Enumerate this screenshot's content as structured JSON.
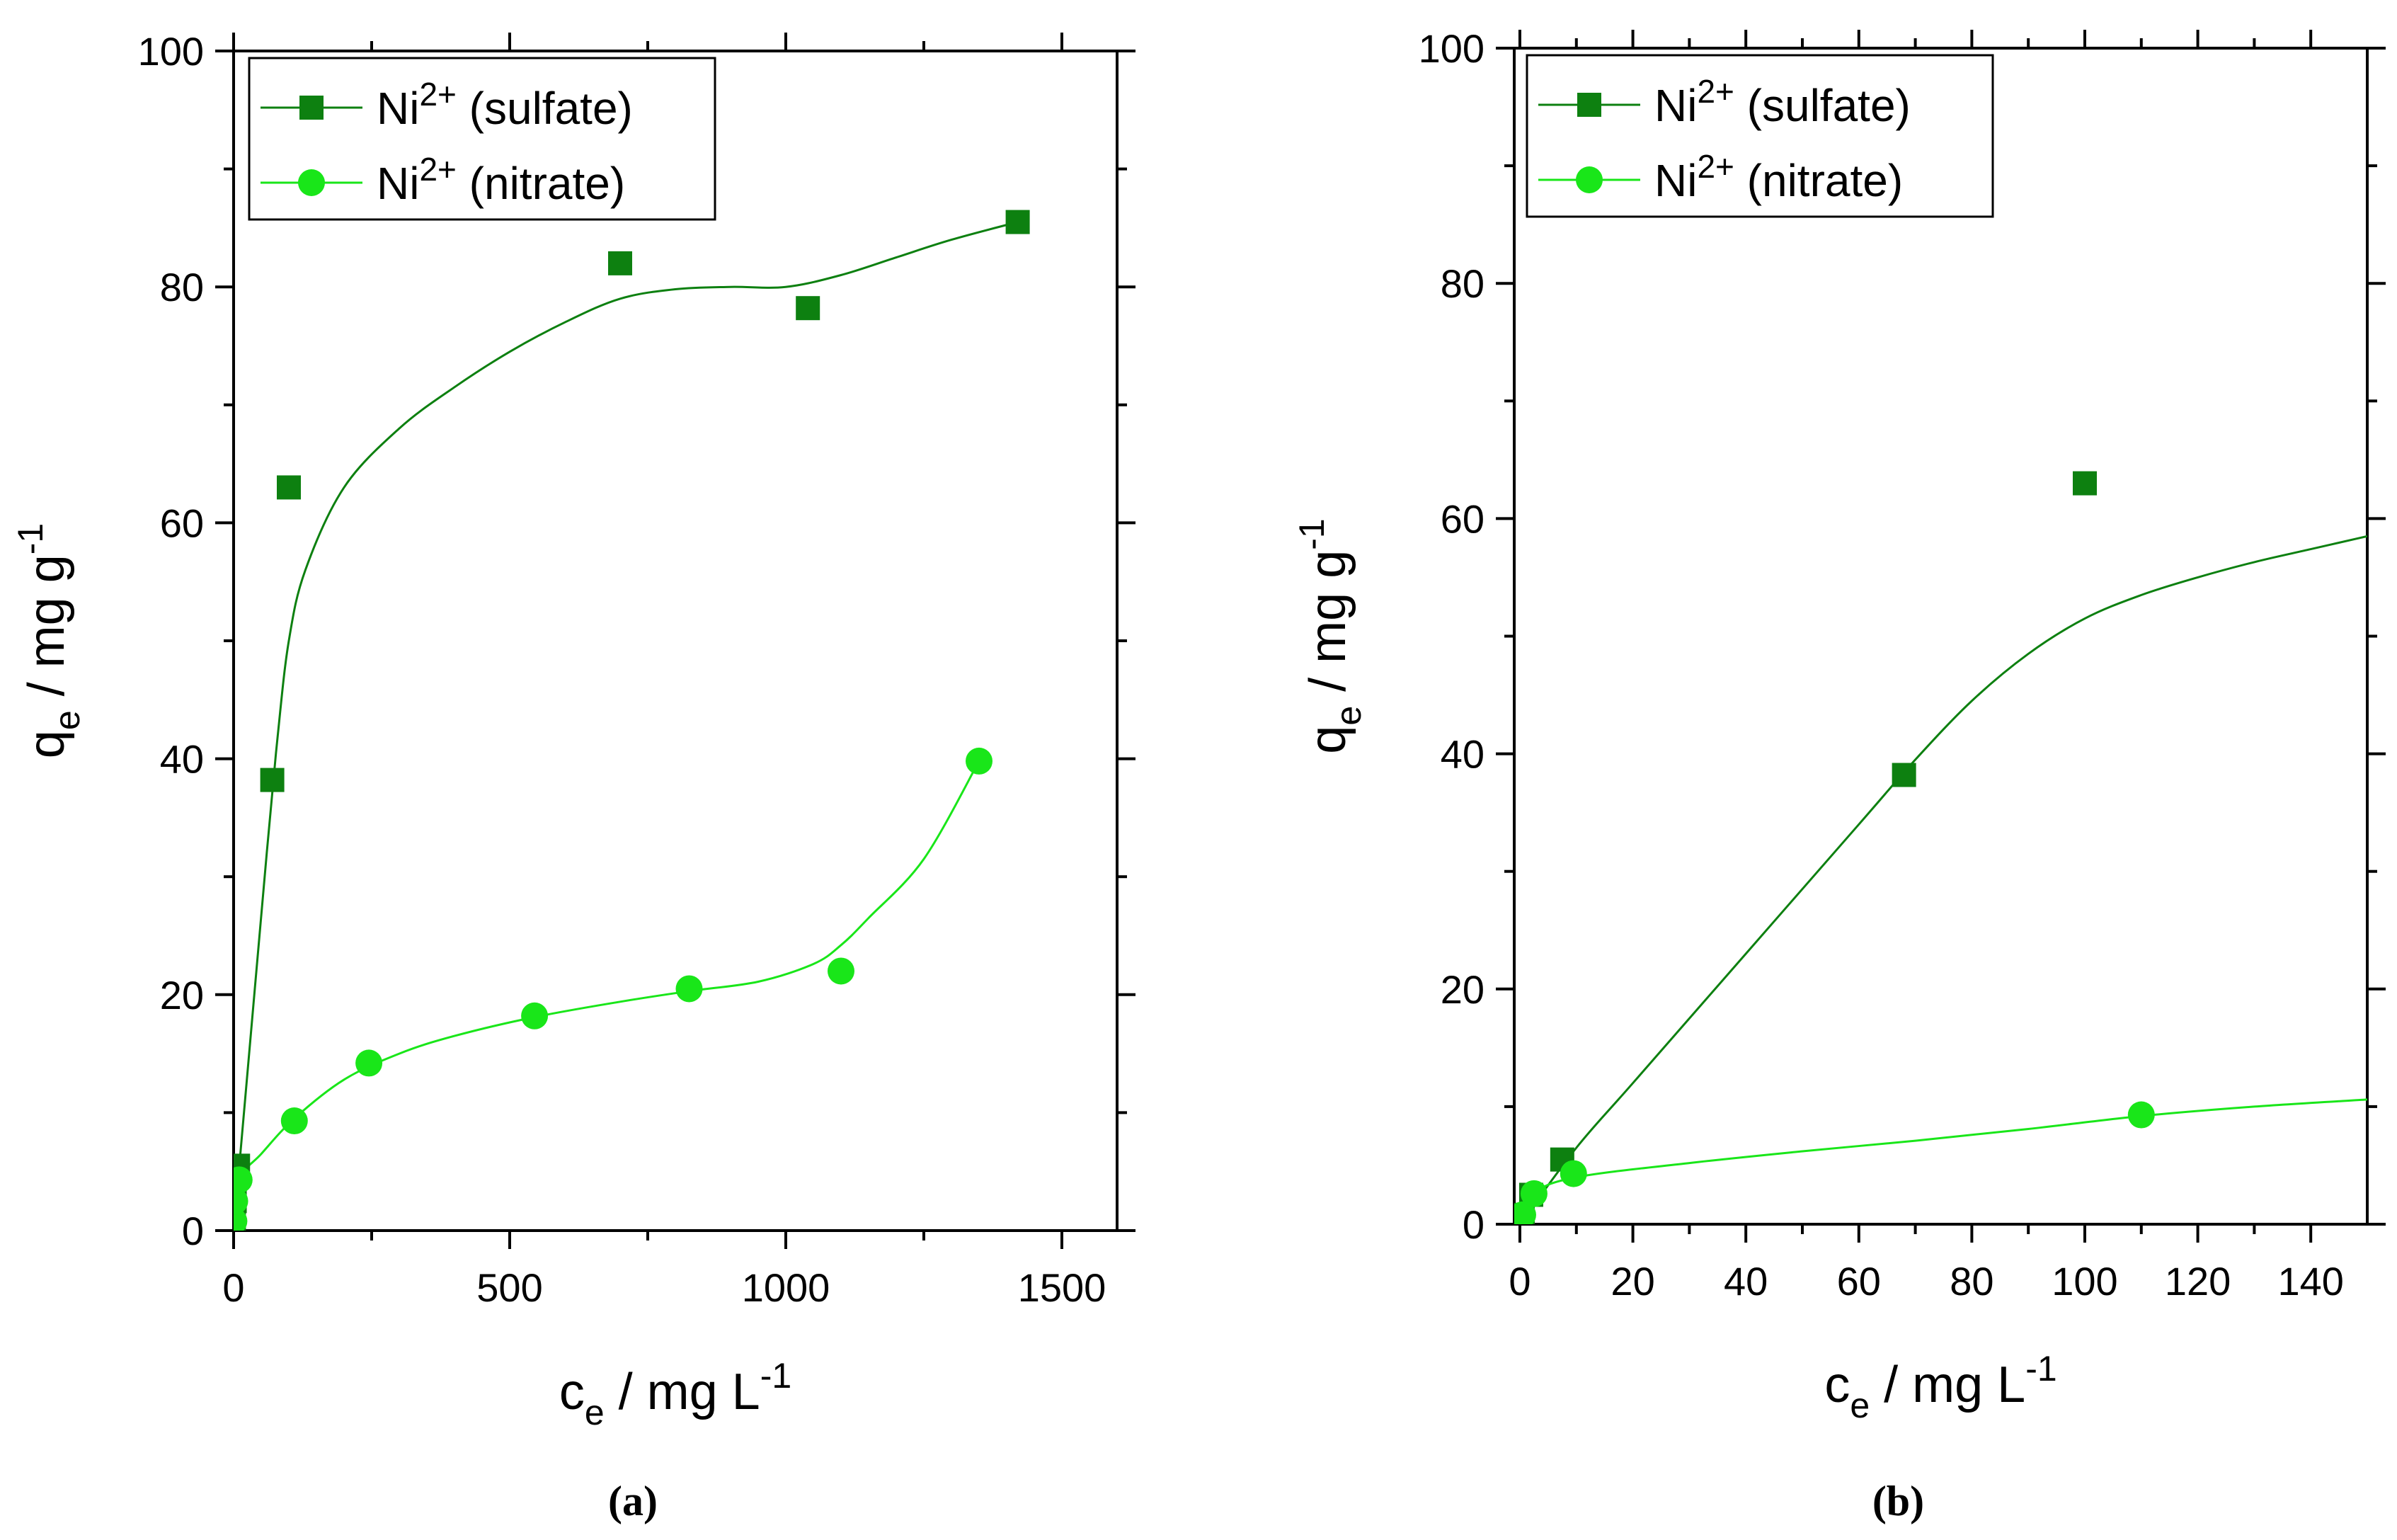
{
  "colors": {
    "sulfate": "#0d8010",
    "nitrate": "#19e619",
    "axis": "#000000"
  },
  "chart_data": [
    {
      "id": "a",
      "type": "scatter",
      "panel_label": "(a)",
      "xlabel": {
        "main": "c",
        "sub": "e",
        "rest": " / mg L",
        "sup": "-1"
      },
      "ylabel": {
        "main": "q",
        "sub": "e",
        "rest": " / mg g",
        "sup": "-1"
      },
      "xlim": [
        0,
        1600
      ],
      "ylim": [
        0,
        100
      ],
      "xticks": [
        0,
        500,
        1000,
        1500
      ],
      "xminor": [
        250,
        750,
        1250
      ],
      "yticks": [
        0,
        20,
        40,
        60,
        80,
        100
      ],
      "yminor": [
        10,
        30,
        50,
        70,
        90
      ],
      "legend": {
        "position": "top-left"
      },
      "series": [
        {
          "name": "Ni2+ (sulfate)",
          "label_base": "Ni",
          "label_sup": "2+",
          "label_rest": " (sulfate)",
          "marker": "square",
          "color_key": "sulfate",
          "points": [
            [
              0.5,
              0.8
            ],
            [
              2,
              2.5
            ],
            [
              8,
              5.5
            ],
            [
              70,
              38.2
            ],
            [
              100,
              63
            ],
            [
              700,
              82
            ],
            [
              1040,
              78.2
            ],
            [
              1420,
              85.5
            ]
          ],
          "fit": [
            [
              0,
              0
            ],
            [
              30,
              16
            ],
            [
              60,
              32
            ],
            [
              80,
              42
            ],
            [
              100,
              50
            ],
            [
              130,
              56
            ],
            [
              200,
              63
            ],
            [
              300,
              68
            ],
            [
              400,
              71.5
            ],
            [
              500,
              74.5
            ],
            [
              600,
              77
            ],
            [
              700,
              79
            ],
            [
              800,
              79.8
            ],
            [
              900,
              80
            ],
            [
              1000,
              80
            ],
            [
              1100,
              81
            ],
            [
              1200,
              82.5
            ],
            [
              1300,
              84
            ],
            [
              1420,
              85.5
            ]
          ]
        },
        {
          "name": "Ni2+ (nitrate)",
          "label_base": "Ni",
          "label_sup": "2+",
          "label_rest": " (nitrate)",
          "marker": "circle",
          "color_key": "nitrate",
          "points": [
            [
              0.5,
              0.8
            ],
            [
              2,
              2.5
            ],
            [
              10,
              4.3
            ],
            [
              110,
              9.3
            ],
            [
              245,
              14.2
            ],
            [
              545,
              18.2
            ],
            [
              825,
              20.5
            ],
            [
              1100,
              22
            ],
            [
              1350,
              39.8
            ]
          ],
          "fit": [
            [
              0,
              0
            ],
            [
              10,
              4.3
            ],
            [
              50,
              6.5
            ],
            [
              110,
              9.5
            ],
            [
              200,
              12.8
            ],
            [
              300,
              15
            ],
            [
              400,
              16.5
            ],
            [
              545,
              18.1
            ],
            [
              700,
              19.4
            ],
            [
              825,
              20.3
            ],
            [
              950,
              21.1
            ],
            [
              1050,
              22.6
            ],
            [
              1100,
              24.2
            ],
            [
              1150,
              26.5
            ],
            [
              1250,
              31.5
            ],
            [
              1350,
              39.8
            ]
          ]
        }
      ]
    },
    {
      "id": "b",
      "type": "scatter",
      "panel_label": "(b)",
      "xlabel": {
        "main": "c",
        "sub": "e",
        "rest": " / mg L",
        "sup": "-1"
      },
      "ylabel": {
        "main": "q",
        "sub": "e",
        "rest": " / mg g",
        "sup": "-1"
      },
      "xlim": [
        -1,
        150
      ],
      "ylim": [
        0,
        100
      ],
      "xticks": [
        0,
        20,
        40,
        60,
        80,
        100,
        120,
        140
      ],
      "xminor": [
        10,
        30,
        50,
        70,
        90,
        110,
        130
      ],
      "yticks": [
        0,
        20,
        40,
        60,
        80,
        100
      ],
      "yminor": [
        10,
        30,
        50,
        70,
        90
      ],
      "legend": {
        "position": "top-left"
      },
      "series": [
        {
          "name": "Ni2+ (sulfate)",
          "label_base": "Ni",
          "label_sup": "2+",
          "label_rest": " (sulfate)",
          "marker": "square",
          "color_key": "sulfate",
          "points": [
            [
              0.5,
              0.8
            ],
            [
              2,
              2.5
            ],
            [
              7.5,
              5.5
            ],
            [
              68,
              38.2
            ],
            [
              100,
              63
            ]
          ],
          "fit": [
            [
              0,
              0
            ],
            [
              10,
              6.5
            ],
            [
              20,
              12
            ],
            [
              40,
              23
            ],
            [
              60,
              34
            ],
            [
              70,
              39.5
            ],
            [
              80,
              44.5
            ],
            [
              90,
              48.5
            ],
            [
              100,
              51.5
            ],
            [
              110,
              53.5
            ],
            [
              120,
              55
            ],
            [
              130,
              56.3
            ],
            [
              140,
              57.4
            ],
            [
              150,
              58.5
            ]
          ]
        },
        {
          "name": "Ni2+ (nitrate)",
          "label_base": "Ni",
          "label_sup": "2+",
          "label_rest": " (nitrate)",
          "marker": "circle",
          "color_key": "nitrate",
          "points": [
            [
              0.5,
              0.8
            ],
            [
              2.5,
              2.6
            ],
            [
              9.5,
              4.3
            ],
            [
              110,
              9.3
            ]
          ],
          "fit": [
            [
              0,
              0
            ],
            [
              2.5,
              2.6
            ],
            [
              10,
              4
            ],
            [
              30,
              5.2
            ],
            [
              50,
              6.2
            ],
            [
              70,
              7.1
            ],
            [
              90,
              8.1
            ],
            [
              110,
              9.2
            ],
            [
              130,
              10
            ],
            [
              150,
              10.6
            ]
          ]
        }
      ]
    }
  ]
}
